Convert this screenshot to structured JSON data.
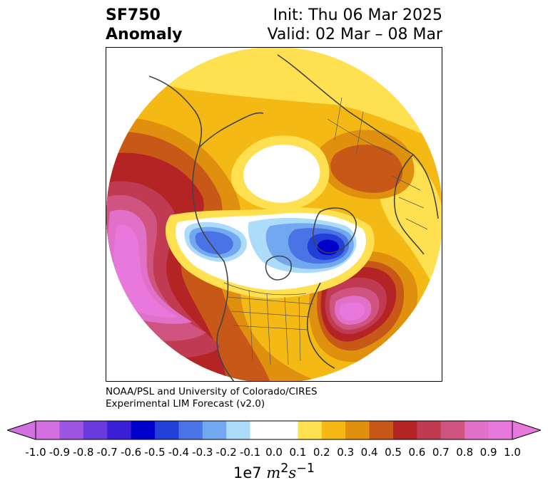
{
  "header": {
    "variable": "SF750",
    "field": "Anomaly",
    "init": "Init: Thu 06 Mar 2025",
    "valid": "Valid: 02 Mar – 08 Mar"
  },
  "credit": {
    "line1": "NOAA/PSL and University of Colorado/CIRES",
    "line2": "Experimental LIM Forecast (v2.0)"
  },
  "colorbar": {
    "ticks": [
      "-1.0",
      "-0.9",
      "-0.8",
      "-0.7",
      "-0.6",
      "-0.5",
      "-0.4",
      "-0.3",
      "-0.2",
      "-0.1",
      "0.0",
      "0.1",
      "0.2",
      "0.3",
      "0.4",
      "0.5",
      "0.6",
      "0.7",
      "0.8",
      "0.9",
      "1.0"
    ],
    "colors": [
      "#d46fe2",
      "#9b55e0",
      "#6a3bdc",
      "#3a1fd6",
      "#0000cc",
      "#2140d8",
      "#4a73e6",
      "#72a8f0",
      "#acdcfa",
      "#ffffff",
      "#ffffff",
      "#ffe050",
      "#f4b914",
      "#e0900f",
      "#c75818",
      "#b42425",
      "#c03a52",
      "#cf5580",
      "#e070c8",
      "#e878dc"
    ],
    "under_color": "#d46fe2",
    "over_color": "#e878dc",
    "scale_prefix": "1e7 ",
    "units_main": "m",
    "units_sup1": "2",
    "units_s": "s",
    "units_sup2": "−1"
  },
  "map": {
    "projection": "north-polar-stereographic",
    "palette": {
      "pos1": "#ffe050",
      "pos2": "#f4b914",
      "pos3": "#e0900f",
      "pos4": "#c75818",
      "pos5": "#b42425",
      "pos6": "#c03a52",
      "pos7": "#cf5580",
      "pos8": "#e070c8",
      "pos9": "#e878dc",
      "neg1": "#acdcfa",
      "neg2": "#72a8f0",
      "neg3": "#4a73e6",
      "neg4": "#2140d8",
      "neg5": "#0000cc",
      "coast": "#444444"
    }
  }
}
